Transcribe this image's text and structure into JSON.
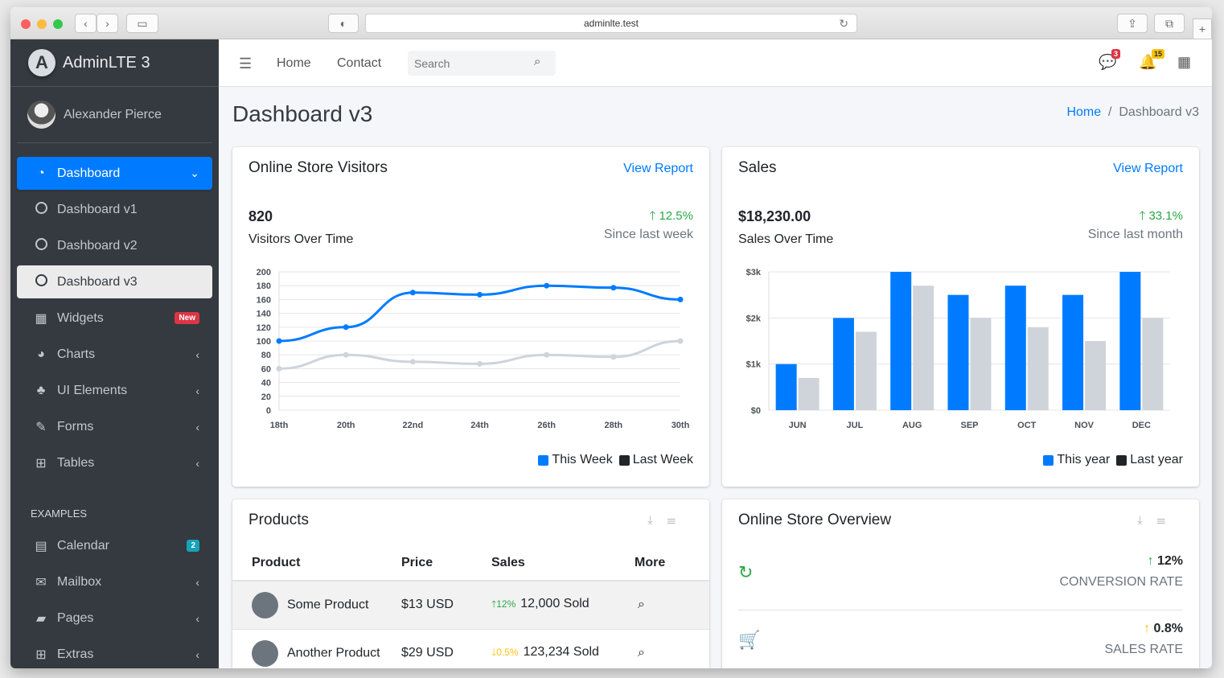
{
  "browser": {
    "url": "adminlte.test"
  },
  "brand": {
    "name": "AdminLTE 3",
    "logo_letter": "A"
  },
  "user": {
    "name": "Alexander Pierce"
  },
  "sidebar": {
    "items": [
      {
        "label": "Dashboard",
        "icon": "dashboard-icon"
      },
      {
        "label": "Dashboard v1",
        "icon": "circle-icon"
      },
      {
        "label": "Dashboard v2",
        "icon": "circle-icon"
      },
      {
        "label": "Dashboard v3",
        "icon": "circle-icon"
      },
      {
        "label": "Widgets",
        "icon": "grid-icon",
        "badge": "New"
      },
      {
        "label": "Charts",
        "icon": "pie-chart-icon"
      },
      {
        "label": "UI Elements",
        "icon": "tree-icon"
      },
      {
        "label": "Forms",
        "icon": "edit-icon"
      },
      {
        "label": "Tables",
        "icon": "table-icon"
      }
    ],
    "header": "EXAMPLES",
    "examples": [
      {
        "label": "Calendar",
        "icon": "calendar-icon",
        "badge": "2"
      },
      {
        "label": "Mailbox",
        "icon": "envelope-icon"
      },
      {
        "label": "Pages",
        "icon": "book-icon"
      },
      {
        "label": "Extras",
        "icon": "plus-square-icon"
      }
    ]
  },
  "topnav": {
    "home": "Home",
    "contact": "Contact",
    "search_placeholder": "Search",
    "messages_count": "3",
    "notifications_count": "15"
  },
  "page": {
    "title": "Dashboard v3",
    "breadcrumb_home": "Home",
    "breadcrumb_current": "Dashboard v3"
  },
  "visitors": {
    "title": "Online Store Visitors",
    "link": "View Report",
    "value": "820",
    "subtitle": "Visitors Over Time",
    "change": "12.5%",
    "since": "Since last week",
    "legend": [
      "This Week",
      "Last Week"
    ]
  },
  "sales": {
    "title": "Sales",
    "link": "View Report",
    "value": "$18,230.00",
    "subtitle": "Sales Over Time",
    "change": "33.1%",
    "since": "Since last month",
    "legend": [
      "This year",
      "Last year"
    ]
  },
  "products": {
    "title": "Products",
    "headers": [
      "Product",
      "Price",
      "Sales",
      "More"
    ],
    "rows": [
      {
        "name": "Some Product",
        "price": "$13 USD",
        "change": "12%",
        "direction": "up",
        "sold": "12,000 Sold"
      },
      {
        "name": "Another Product",
        "price": "$29 USD",
        "change": "0.5%",
        "direction": "down",
        "sold": "123,234 Sold"
      }
    ]
  },
  "overview": {
    "title": "Online Store Overview",
    "rows": [
      {
        "value": "12%",
        "label": "CONVERSION RATE",
        "icon": "refresh-icon",
        "color": "#28a745"
      },
      {
        "value": "0.8%",
        "label": "SALES RATE",
        "icon": "cart-icon",
        "color": "#ffc107"
      }
    ]
  },
  "colors": {
    "primary": "#007bff",
    "success": "#28a745",
    "warning": "#ffc107",
    "danger": "#dc3545",
    "info": "#17a2b8",
    "gray": "#ced4da"
  },
  "chart_data": [
    {
      "type": "line",
      "x": [
        "18th",
        "20th",
        "22nd",
        "24th",
        "26th",
        "28th",
        "30th"
      ],
      "series": [
        {
          "name": "This Week",
          "values": [
            100,
            120,
            170,
            167,
            180,
            177,
            160
          ]
        },
        {
          "name": "Last Week",
          "values": [
            60,
            80,
            70,
            67,
            80,
            77,
            100
          ]
        }
      ],
      "ylim": [
        0,
        200
      ],
      "yticks": [
        0,
        20,
        40,
        60,
        80,
        100,
        120,
        140,
        160,
        180,
        200
      ],
      "grid": true
    },
    {
      "type": "bar",
      "categories": [
        "JUN",
        "JUL",
        "AUG",
        "SEP",
        "OCT",
        "NOV",
        "DEC"
      ],
      "series": [
        {
          "name": "This year",
          "values": [
            1000,
            2000,
            3000,
            2500,
            2700,
            2500,
            3000
          ]
        },
        {
          "name": "Last year",
          "values": [
            700,
            1700,
            2700,
            2000,
            1800,
            1500,
            2000
          ]
        }
      ],
      "ylim": [
        0,
        3000
      ],
      "yticks": [
        "$0",
        "$1k",
        "$2k",
        "$3k"
      ],
      "grid": true
    }
  ]
}
